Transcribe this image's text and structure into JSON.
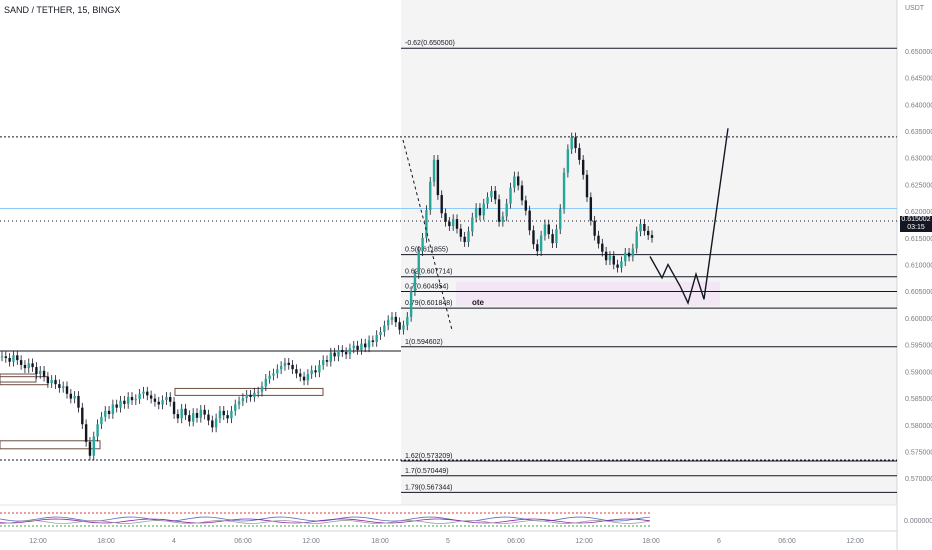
{
  "header": {
    "symbol_line": "SAND / TETHER, 15, BINGX",
    "quote_unit": "USDT"
  },
  "price_tag": {
    "value": "0.615002",
    "countdown": "03:15"
  },
  "chart_data": {
    "type": "line",
    "y_axis_ticks": [
      "0.650000",
      "0.645000",
      "0.640000",
      "0.635000",
      "0.630000",
      "0.625000",
      "0.620000",
      "0.615000",
      "0.610000",
      "0.605000",
      "0.600000",
      "0.595000",
      "0.590000",
      "0.585000",
      "0.580000",
      "0.575000",
      "0.570000"
    ],
    "x_axis_ticks": [
      "12:00",
      "18:00",
      "4",
      "06:00",
      "12:00",
      "18:00",
      "5",
      "06:00",
      "12:00",
      "18:00",
      "6",
      "06:00",
      "12:00"
    ],
    "ylim": [
      0.5655,
      0.6535
    ],
    "price_series": [
      0.5928,
      0.5925,
      0.5918,
      0.593,
      0.5921,
      0.5912,
      0.5906,
      0.5915,
      0.5908,
      0.5895,
      0.5901,
      0.589,
      0.5878,
      0.5884,
      0.5876,
      0.5869,
      0.5872,
      0.5858,
      0.5849,
      0.5854,
      0.5832,
      0.5801,
      0.5768,
      0.5742,
      0.5778,
      0.5801,
      0.5815,
      0.5826,
      0.582,
      0.5838,
      0.5832,
      0.5845,
      0.5839,
      0.5852,
      0.5846,
      0.5848,
      0.5858,
      0.5862,
      0.5855,
      0.5849,
      0.5843,
      0.5838,
      0.5846,
      0.5852,
      0.5843,
      0.582,
      0.5812,
      0.583,
      0.5818,
      0.5806,
      0.5822,
      0.5813,
      0.5828,
      0.5819,
      0.5808,
      0.5795,
      0.5812,
      0.5826,
      0.5818,
      0.5812,
      0.5826,
      0.5838,
      0.5844,
      0.585,
      0.5856,
      0.5852,
      0.586,
      0.5862,
      0.5872,
      0.5886,
      0.5892,
      0.5896,
      0.5904,
      0.591,
      0.5916,
      0.5912,
      0.5904,
      0.5896,
      0.589,
      0.5883,
      0.5895,
      0.5902,
      0.5898,
      0.5912,
      0.5921,
      0.5918,
      0.5935,
      0.5928,
      0.594,
      0.5936,
      0.5932,
      0.5943,
      0.5948,
      0.594,
      0.5952,
      0.5945,
      0.5958,
      0.5955,
      0.5968,
      0.5974,
      0.5986,
      0.5996,
      0.6002,
      0.5992,
      0.5978,
      0.5986,
      0.6002,
      0.605,
      0.6082,
      0.6125,
      0.615,
      0.6202,
      0.6255,
      0.6296,
      0.623,
      0.6196,
      0.618,
      0.6172,
      0.6185,
      0.6167,
      0.6152,
      0.6142,
      0.6162,
      0.6188,
      0.6206,
      0.6192,
      0.6214,
      0.6226,
      0.6238,
      0.6222,
      0.618,
      0.619,
      0.6214,
      0.6244,
      0.6265,
      0.6248,
      0.622,
      0.6201,
      0.6164,
      0.6138,
      0.6125,
      0.6154,
      0.6175,
      0.6157,
      0.614,
      0.6166,
      0.6204,
      0.6272,
      0.6316,
      0.6338,
      0.6318,
      0.6296,
      0.6268,
      0.6226,
      0.6182,
      0.6154,
      0.6139,
      0.6124,
      0.6108,
      0.6116,
      0.61,
      0.6094,
      0.6106,
      0.6122,
      0.6115,
      0.613,
      0.6162,
      0.6176,
      0.6163,
      0.6155,
      0.615
    ],
    "projection_path": [
      0.6115,
      0.6075,
      0.61,
      0.606,
      0.6028,
      0.6082,
      0.6035,
      0.6355
    ],
    "fibonacci_levels": [
      {
        "label": "-0.62(0.650500)",
        "value": 0.6505
      },
      {
        "label": "0.5(0.611855)",
        "value": 0.611855
      },
      {
        "label": "0.62(0.607714)",
        "value": 0.607714
      },
      {
        "label": "0.7(0.604954)",
        "value": 0.604954
      },
      {
        "label": "0.79(0.601848)",
        "value": 0.601848
      },
      {
        "label": "1(0.594602)",
        "value": 0.594602
      },
      {
        "label": "1.62(0.573209)",
        "value": 0.573209
      },
      {
        "label": "1.7(0.570449)",
        "value": 0.570449
      },
      {
        "label": "1.79(0.567344)",
        "value": 0.567344
      }
    ],
    "horizontal_rays": [
      0.6339,
      0.6205,
      0.5734
    ],
    "zone_label": "ote",
    "oscillator_axis_label": "0.000000",
    "colors": {
      "up": "#26a69a",
      "down": "#ef5350",
      "candle": "#131722",
      "fib_line": "#131722",
      "ote_zone": "#f3e5f5",
      "blue_line": "#90caf9",
      "osc_red": "#e53935",
      "osc_green": "#43a047",
      "osc_blue": "#5c6bc0"
    }
  }
}
